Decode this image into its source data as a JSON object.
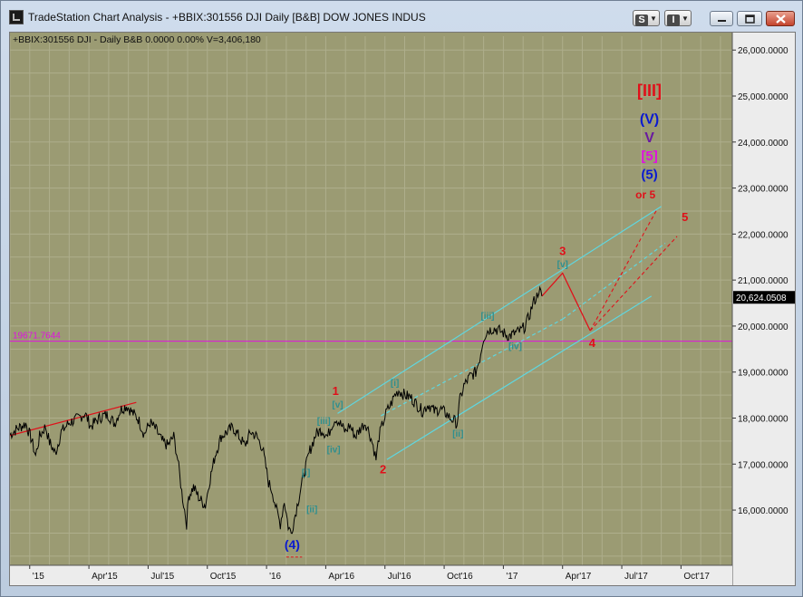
{
  "window": {
    "title": "TradeStation Chart Analysis - +BBIX:301556 DJI Daily [B&B] DOW JONES INDUS",
    "btn_s": "S",
    "btn_i": "I"
  },
  "status_line": "+BBIX:301556 DJI - Daily  B&B  0.0000  0.00%  V=3,406,180",
  "colors": {
    "background": "#9b9b73",
    "grid": "#aeae8c",
    "price": "#000000",
    "wave_red": "#e0101a",
    "channel_cyan": "#5fd7e0",
    "label_teal": "#2f8f8f",
    "hline_magenta": "#e011e0",
    "wave_blue": "#0a1ad0",
    "wave_purple": "#6a1aa0"
  },
  "chart_data": {
    "type": "line",
    "title": "",
    "xlabel": "",
    "ylabel": "",
    "ylim": [
      14800,
      26300
    ],
    "y_ticks": [
      16000,
      17000,
      18000,
      19000,
      20000,
      21000,
      22000,
      23000,
      24000,
      25000,
      26000
    ],
    "y_tick_labels": [
      "16,000.0000",
      "17,000.0000",
      "18,000.0000",
      "19,000.0000",
      "20,000.0000",
      "21,000.0000",
      "22,000.0000",
      "23,000.0000",
      "24,000.0000",
      "25,000.0000",
      "26,000.0000"
    ],
    "x_ticks": [
      "'15",
      "Apr'15",
      "Jul'15",
      "Oct'15",
      "'16",
      "Apr'16",
      "Jul'16",
      "Oct'16",
      "'17",
      "Apr'17",
      "Jul'17",
      "Oct'17"
    ],
    "x_tick_months": [
      0,
      3,
      6,
      9,
      12,
      15,
      18,
      21,
      24,
      27,
      30,
      33
    ],
    "xlim_months": [
      -1.0,
      35.6
    ],
    "last_price": "20,624.0508",
    "last_value": 20624,
    "hline_value": 19671.7644,
    "hline_label": "19671.7644",
    "price_series": [
      [
        -1.0,
        17640
      ],
      [
        -0.6,
        17780
      ],
      [
        -0.2,
        17880
      ],
      [
        0.1,
        17520
      ],
      [
        0.3,
        17180
      ],
      [
        0.5,
        17600
      ],
      [
        0.8,
        17820
      ],
      [
        1.0,
        17480
      ],
      [
        1.3,
        17230
      ],
      [
        1.6,
        17700
      ],
      [
        2.0,
        17900
      ],
      [
        2.4,
        17980
      ],
      [
        2.8,
        18100
      ],
      [
        3.1,
        17820
      ],
      [
        3.4,
        17950
      ],
      [
        3.7,
        18050
      ],
      [
        4.0,
        18060
      ],
      [
        4.3,
        17880
      ],
      [
        4.6,
        18180
      ],
      [
        4.9,
        18270
      ],
      [
        5.2,
        18120
      ],
      [
        5.5,
        17980
      ],
      [
        5.8,
        17650
      ],
      [
        6.1,
        17900
      ],
      [
        6.4,
        17750
      ],
      [
        6.7,
        17500
      ],
      [
        7.0,
        17400
      ],
      [
        7.3,
        17600
      ],
      [
        7.5,
        17100
      ],
      [
        7.7,
        16400
      ],
      [
        7.85,
        16000
      ],
      [
        7.95,
        15700
      ],
      [
        8.05,
        16300
      ],
      [
        8.3,
        16500
      ],
      [
        8.6,
        16250
      ],
      [
        8.9,
        16100
      ],
      [
        9.1,
        16600
      ],
      [
        9.4,
        17200
      ],
      [
        9.7,
        17600
      ],
      [
        10.0,
        17700
      ],
      [
        10.3,
        17800
      ],
      [
        10.6,
        17600
      ],
      [
        10.9,
        17400
      ],
      [
        11.2,
        17700
      ],
      [
        11.5,
        17600
      ],
      [
        11.8,
        17350
      ],
      [
        12.1,
        16600
      ],
      [
        12.3,
        16400
      ],
      [
        12.5,
        16000
      ],
      [
        12.7,
        15700
      ],
      [
        12.9,
        16200
      ],
      [
        13.1,
        15650
      ],
      [
        13.25,
        15500
      ],
      [
        13.4,
        15800
      ],
      [
        13.6,
        16200
      ],
      [
        13.9,
        16800
      ],
      [
        14.2,
        17300
      ],
      [
        14.5,
        17650
      ],
      [
        14.8,
        17750
      ],
      [
        15.1,
        17600
      ],
      [
        15.3,
        17850
      ],
      [
        15.5,
        18000
      ],
      [
        15.7,
        17900
      ],
      [
        16.0,
        17700
      ],
      [
        16.2,
        17850
      ],
      [
        16.5,
        17600
      ],
      [
        16.8,
        17800
      ],
      [
        17.0,
        17900
      ],
      [
        17.2,
        17700
      ],
      [
        17.4,
        17400
      ],
      [
        17.55,
        17100
      ],
      [
        17.7,
        17600
      ],
      [
        17.9,
        17900
      ],
      [
        18.1,
        18150
      ],
      [
        18.3,
        18300
      ],
      [
        18.5,
        18500
      ],
      [
        18.7,
        18600
      ],
      [
        19.0,
        18500
      ],
      [
        19.3,
        18450
      ],
      [
        19.6,
        18300
      ],
      [
        19.9,
        18150
      ],
      [
        20.2,
        18300
      ],
      [
        20.5,
        18150
      ],
      [
        20.8,
        18200
      ],
      [
        21.1,
        18100
      ],
      [
        21.3,
        18000
      ],
      [
        21.5,
        17950
      ],
      [
        21.65,
        17880
      ],
      [
        21.8,
        18400
      ],
      [
        22.0,
        18700
      ],
      [
        22.3,
        18900
      ],
      [
        22.6,
        19000
      ],
      [
        22.8,
        19300
      ],
      [
        23.0,
        19750
      ],
      [
        23.2,
        19900
      ],
      [
        23.5,
        19950
      ],
      [
        23.8,
        19900
      ],
      [
        24.0,
        19850
      ],
      [
        24.3,
        19780
      ],
      [
        24.6,
        19850
      ],
      [
        24.9,
        19900
      ],
      [
        25.1,
        20000
      ],
      [
        25.3,
        20200
      ],
      [
        25.5,
        20500
      ],
      [
        25.7,
        20650
      ],
      [
        25.8,
        20800
      ],
      [
        25.95,
        20650
      ]
    ],
    "red_line_2015": [
      [
        -1.0,
        17620
      ],
      [
        5.4,
        18340
      ]
    ],
    "wave_path": [
      [
        25.95,
        20650
      ],
      [
        27.0,
        21150
      ],
      [
        28.4,
        19900
      ]
    ],
    "projections": [
      {
        "from": [
          28.4,
          19900
        ],
        "to": [
          31.8,
          22550
        ]
      },
      {
        "from": [
          28.4,
          19900
        ],
        "to": [
          32.8,
          21950
        ]
      }
    ],
    "channel_lines": [
      {
        "from": [
          15.6,
          18100
        ],
        "to": [
          32.0,
          22600
        ]
      },
      {
        "from": [
          18.1,
          17100
        ],
        "to": [
          31.5,
          20650
        ]
      },
      {
        "from": [
          17.8,
          18050
        ],
        "to": [
          27.0,
          20150
        ]
      },
      {
        "from": [
          27.0,
          20150
        ],
        "to": [
          32.2,
          21800
        ]
      }
    ],
    "labels": [
      {
        "text": "[III]",
        "color": "#e0101a",
        "m": 31.4,
        "v": 25000,
        "size": 18
      },
      {
        "text": "(V)",
        "color": "#0a1ad0",
        "m": 31.4,
        "v": 24400,
        "size": 16
      },
      {
        "text": "V",
        "color": "#6a1aa0",
        "m": 31.4,
        "v": 24000,
        "size": 16
      },
      {
        "text": "[5]",
        "color": "#e011e0",
        "m": 31.4,
        "v": 23600,
        "size": 15
      },
      {
        "text": "(5)",
        "color": "#0a1ad0",
        "m": 31.4,
        "v": 23200,
        "size": 15
      },
      {
        "text": "or 5",
        "color": "#e0101a",
        "m": 31.2,
        "v": 22780,
        "size": 12
      },
      {
        "text": "5",
        "color": "#e0101a",
        "m": 33.2,
        "v": 22280,
        "size": 13
      },
      {
        "text": "3",
        "color": "#e0101a",
        "m": 27.0,
        "v": 21540,
        "size": 13
      },
      {
        "text": "[v]",
        "color": "#2f8f8f",
        "m": 27.0,
        "v": 21280,
        "size": 10
      },
      {
        "text": "4",
        "color": "#e0101a",
        "m": 28.5,
        "v": 19550,
        "size": 13
      },
      {
        "text": "[iii]",
        "color": "#2f8f8f",
        "m": 23.2,
        "v": 20160,
        "size": 10
      },
      {
        "text": "[iv]",
        "color": "#2f8f8f",
        "m": 24.6,
        "v": 19500,
        "size": 10
      },
      {
        "text": "[ii]",
        "color": "#2f8f8f",
        "m": 21.7,
        "v": 17600,
        "size": 10
      },
      {
        "text": "[i]",
        "color": "#2f8f8f",
        "m": 18.5,
        "v": 18700,
        "size": 10
      },
      {
        "text": "1",
        "color": "#e0101a",
        "m": 15.5,
        "v": 18500,
        "size": 13
      },
      {
        "text": "[v]",
        "color": "#2f8f8f",
        "m": 15.6,
        "v": 18230,
        "size": 10
      },
      {
        "text": "[iii]",
        "color": "#2f8f8f",
        "m": 14.9,
        "v": 17870,
        "size": 10
      },
      {
        "text": "[iv]",
        "color": "#2f8f8f",
        "m": 15.4,
        "v": 17250,
        "size": 10
      },
      {
        "text": "2",
        "color": "#e0101a",
        "m": 17.9,
        "v": 16800,
        "size": 13
      },
      {
        "text": "[i]",
        "color": "#2f8f8f",
        "m": 14.0,
        "v": 16750,
        "size": 10
      },
      {
        "text": "[ii]",
        "color": "#2f8f8f",
        "m": 14.3,
        "v": 15950,
        "size": 10
      },
      {
        "text": "(4)",
        "color": "#0a1ad0",
        "m": 13.3,
        "v": 15150,
        "size": 14
      }
    ]
  }
}
